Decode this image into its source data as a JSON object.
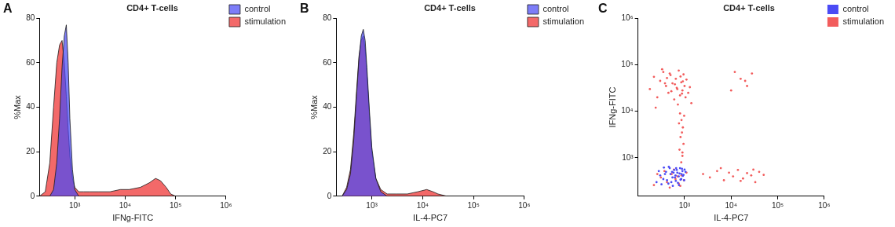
{
  "chart_data": [
    {
      "type": "area",
      "panel": "A",
      "title": "CD4+ T-cells",
      "x_label": "IFNg-FITC",
      "y_label": "%Max",
      "log": "x",
      "grid": false,
      "legend": "right",
      "xlim": [
        200,
        1000000
      ],
      "xticks": [
        {
          "value": 1000,
          "label": "10³"
        },
        {
          "value": 10000,
          "label": "10⁴"
        },
        {
          "value": 100000,
          "label": "10⁵"
        },
        {
          "value": 1000000,
          "label": "10⁶"
        }
      ],
      "ylim": [
        0,
        80
      ],
      "yticks": [
        0,
        20,
        40,
        60,
        80
      ],
      "x": [
        200,
        260,
        320,
        380,
        440,
        500,
        560,
        620,
        680,
        740,
        800,
        900,
        1000,
        1200,
        1500,
        2000,
        3000,
        5000,
        8000,
        12000,
        20000,
        30000,
        40000,
        50000,
        65000,
        80000,
        100000,
        1000000
      ],
      "series": [
        {
          "name": "control",
          "color": "#4b4bf5",
          "values": [
            0,
            0,
            0,
            3,
            15,
            35,
            58,
            72,
            77,
            60,
            35,
            12,
            3,
            0,
            0,
            0,
            0,
            0,
            0,
            0,
            0,
            0,
            0,
            0,
            0,
            0,
            0,
            0
          ]
        },
        {
          "name": "stimulation",
          "color": "#f25c5c",
          "values": [
            0,
            2,
            15,
            40,
            60,
            68,
            70,
            60,
            45,
            30,
            18,
            8,
            4,
            2,
            2,
            2,
            2,
            2,
            3,
            3,
            4,
            6,
            8,
            7,
            4,
            1,
            0,
            0
          ]
        }
      ]
    },
    {
      "type": "area",
      "panel": "B",
      "title": "CD4+ T-cells",
      "x_label": "IL-4-PC7",
      "y_label": "%Max",
      "log": "x",
      "grid": false,
      "legend": "right",
      "xlim": [
        200,
        1000000
      ],
      "xticks": [
        {
          "value": 1000,
          "label": "10³"
        },
        {
          "value": 10000,
          "label": "10⁴"
        },
        {
          "value": 100000,
          "label": "10⁵"
        },
        {
          "value": 1000000,
          "label": "10⁶"
        }
      ],
      "ylim": [
        0,
        80
      ],
      "yticks": [
        0,
        20,
        40,
        60,
        80
      ],
      "x": [
        200,
        260,
        320,
        380,
        440,
        500,
        560,
        620,
        680,
        740,
        800,
        900,
        1000,
        1200,
        1500,
        2000,
        3000,
        5000,
        8000,
        12000,
        16000,
        20000,
        30000,
        1000000
      ],
      "series": [
        {
          "name": "control",
          "color": "#4b4bf5",
          "values": [
            0,
            0,
            3,
            10,
            25,
            45,
            62,
            72,
            75,
            70,
            58,
            38,
            22,
            8,
            2,
            0,
            0,
            0,
            0,
            0,
            0,
            0,
            0,
            0
          ]
        },
        {
          "name": "stimulation",
          "color": "#f25c5c",
          "values": [
            0,
            0,
            4,
            12,
            28,
            47,
            63,
            70,
            72,
            66,
            55,
            36,
            20,
            8,
            3,
            1,
            1,
            1,
            2,
            3,
            2,
            1,
            0,
            0
          ]
        }
      ]
    },
    {
      "type": "scatter",
      "panel": "C",
      "title": "CD4+ T-cells",
      "x_label": "IL-4-PC7",
      "y_label": "IFNg-FITC",
      "log": true,
      "grid": false,
      "legend": "right",
      "xlim": [
        100,
        1000000
      ],
      "xticks": [
        {
          "value": 1000,
          "label": "10³"
        },
        {
          "value": 10000,
          "label": "10⁴"
        },
        {
          "value": 100000,
          "label": "10⁵"
        },
        {
          "value": 1000000,
          "label": "10⁶"
        }
      ],
      "ylim": [
        150,
        1000000
      ],
      "yticks": [
        {
          "value": 1000,
          "label": "10³"
        },
        {
          "value": 10000,
          "label": "10⁴"
        },
        {
          "value": 100000,
          "label": "10⁵"
        },
        {
          "value": 1000000,
          "label": "10⁶"
        }
      ],
      "series": [
        {
          "name": "control",
          "color": "#4b4bf5",
          "x": [
            250,
            300,
            350,
            400,
            450,
            500,
            550,
            600,
            650,
            700,
            750,
            800,
            850,
            900,
            950,
            1000,
            280,
            320,
            380,
            420,
            480,
            520,
            580,
            620,
            680,
            720,
            780,
            820,
            880,
            920,
            980,
            1050,
            360,
            460,
            560,
            660,
            760,
            860,
            540,
            640
          ],
          "values": [
            300,
            420,
            350,
            500,
            280,
            450,
            380,
            550,
            320,
            480,
            400,
            600,
            350,
            520,
            430,
            560,
            520,
            270,
            450,
            330,
            600,
            300,
            480,
            380,
            550,
            290,
            460,
            340,
            580,
            410,
            330,
            500,
            620,
            640,
            250,
            600,
            260,
            450,
            500,
            420
          ]
        },
        {
          "name": "stimulation",
          "color": "#f25c5c",
          "x": [
            220,
            310,
            420,
            530,
            640,
            750,
            860,
            970,
            1100,
            370,
            480,
            590,
            700,
            810,
            260,
            180,
            220,
            260,
            300,
            350,
            400,
            450,
            500,
            550,
            600,
            650,
            700,
            750,
            800,
            850,
            900,
            950,
            1000,
            1100,
            1200,
            1300,
            1400,
            240,
            330,
            420,
            520,
            620,
            720,
            820,
            920,
            1050,
            480,
            680,
            880,
            380,
            850,
            900,
            780,
            950,
            820,
            880,
            920,
            760,
            860,
            980,
            800,
            900,
            2500,
            3500,
            5000,
            7000,
            9000,
            11000,
            14000,
            18000,
            22000,
            27000,
            33000,
            40000,
            50000,
            6000,
            16000,
            30000,
            12000,
            16000,
            22000,
            28000,
            10000,
            20000
          ],
          "values": [
            260,
            380,
            300,
            450,
            350,
            280,
            420,
            330,
            480,
            520,
            230,
            560,
            400,
            250,
            450,
            30000,
            55000,
            20000,
            45000,
            70000,
            35000,
            25000,
            60000,
            40000,
            18000,
            50000,
            30000,
            75000,
            22000,
            42000,
            28000,
            62000,
            35000,
            48000,
            25000,
            33000,
            15000,
            12000,
            80000,
            52000,
            27000,
            38000,
            14000,
            56000,
            44000,
            20000,
            65000,
            32000,
            24000,
            40000,
            800,
            1100,
            1500,
            2000,
            2800,
            3500,
            4500,
            5500,
            6500,
            8000,
            9000,
            1300,
            450,
            380,
            520,
            330,
            480,
            400,
            550,
            360,
            470,
            420,
            300,
            500,
            430,
            600,
            320,
            560,
            70000,
            50000,
            35000,
            65000,
            28000,
            45000
          ]
        }
      ]
    }
  ]
}
